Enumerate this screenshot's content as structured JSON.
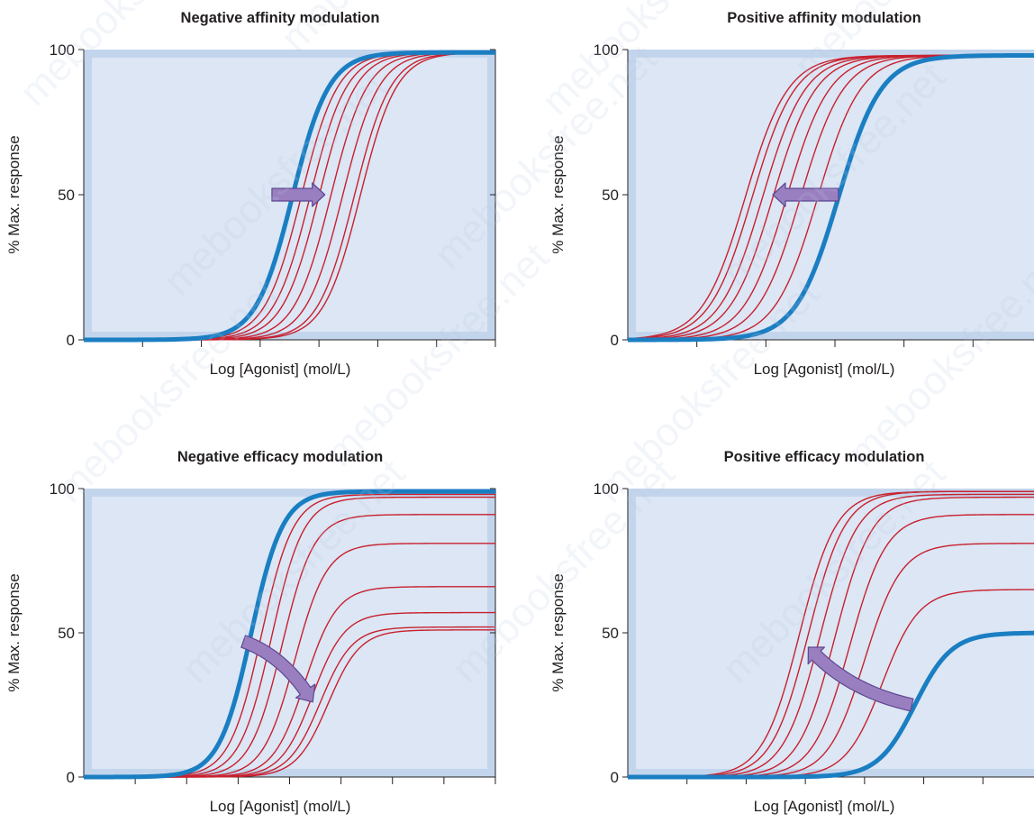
{
  "watermark": "mebooksfree.net",
  "colors": {
    "plot_bg": "#dce6f4",
    "plot_frame": "#c3d5ec",
    "control_curve": "#1a7ec2",
    "modulated_curves": "#c8202e",
    "arrow_fill": "#9a7fc0",
    "arrow_stroke": "#5d4690",
    "axis": "#231f20"
  },
  "chart_data": [
    {
      "type": "line",
      "title": "Negative affinity modulation",
      "xlabel": "Log [Agonist] (mol/L)",
      "ylabel": "% Max. response",
      "xscale": "log",
      "ylim": [
        0,
        100
      ],
      "yticks": [
        "0",
        "50",
        "100"
      ],
      "xticks": [
        "",
        "",
        "",
        "",
        "",
        "",
        ""
      ],
      "x_tick_labels_shown": false,
      "grid": false,
      "shift_arrow": "right",
      "series": [
        {
          "role": "control",
          "color": "#1a7ec2",
          "emax": 99,
          "ec50_x": 3.55
        },
        {
          "role": "modulated",
          "color": "#c8202e",
          "curves": [
            {
              "emax": 99,
              "ec50_x": 3.7
            },
            {
              "emax": 99,
              "ec50_x": 3.85
            },
            {
              "emax": 99,
              "ec50_x": 4.0
            },
            {
              "emax": 99,
              "ec50_x": 4.2
            },
            {
              "emax": 99,
              "ec50_x": 4.4
            },
            {
              "emax": 99,
              "ec50_x": 4.6
            },
            {
              "emax": 99,
              "ec50_x": 4.7
            }
          ]
        }
      ]
    },
    {
      "type": "line",
      "title": "Positive affinity modulation",
      "xlabel": "Log [Agonist] (mol/L)",
      "ylabel": "% Max. response",
      "xscale": "log",
      "ylim": [
        0,
        100
      ],
      "yticks": [
        "0",
        "50",
        "100"
      ],
      "xticks": [
        "",
        "",
        "",
        "",
        "",
        ""
      ],
      "x_tick_labels_shown": false,
      "grid": false,
      "shift_arrow": "left",
      "series": [
        {
          "role": "control",
          "color": "#1a7ec2",
          "emax": 98,
          "ec50_x": 3.05
        },
        {
          "role": "modulated",
          "color": "#c8202e",
          "curves": [
            {
              "emax": 98,
              "ec50_x": 2.75
            },
            {
              "emax": 98,
              "ec50_x": 2.5
            },
            {
              "emax": 98,
              "ec50_x": 2.3
            },
            {
              "emax": 98,
              "ec50_x": 2.1
            },
            {
              "emax": 98,
              "ec50_x": 1.95
            },
            {
              "emax": 98,
              "ec50_x": 1.8
            },
            {
              "emax": 98,
              "ec50_x": 1.7
            }
          ]
        }
      ]
    },
    {
      "type": "line",
      "title": "Negative efficacy modulation",
      "xlabel": "Log [Agonist] (mol/L)",
      "ylabel": "% Max. response",
      "xscale": "log",
      "ylim": [
        0,
        100
      ],
      "yticks": [
        "0",
        "50",
        "100"
      ],
      "xticks": [
        "",
        "",
        "",
        "",
        "",
        "",
        "",
        ""
      ],
      "x_tick_labels_shown": false,
      "grid": false,
      "shift_arrow": "down-right",
      "series": [
        {
          "role": "control",
          "color": "#1a7ec2",
          "emax": 99,
          "ec50_x": 3.25
        },
        {
          "role": "modulated",
          "color": "#c8202e",
          "curves": [
            {
              "emax": 98,
              "ec50_x": 3.45
            },
            {
              "emax": 97,
              "ec50_x": 3.65
            },
            {
              "emax": 91,
              "ec50_x": 3.85
            },
            {
              "emax": 81,
              "ec50_x": 4.1
            },
            {
              "emax": 66,
              "ec50_x": 4.3
            },
            {
              "emax": 57,
              "ec50_x": 4.45
            },
            {
              "emax": 52,
              "ec50_x": 4.6
            },
            {
              "emax": 51,
              "ec50_x": 4.75
            }
          ]
        }
      ]
    },
    {
      "type": "line",
      "title": "Positive efficacy modulation",
      "xlabel": "Log [Agonist] (mol/L)",
      "ylabel": "% Max. response",
      "xscale": "log",
      "ylim": [
        0,
        100
      ],
      "yticks": [
        "0",
        "50",
        "100"
      ],
      "xticks": [
        "",
        "",
        "",
        "",
        "",
        "",
        ""
      ],
      "x_tick_labels_shown": false,
      "grid": false,
      "shift_arrow": "up-left",
      "series": [
        {
          "role": "control",
          "color": "#1a7ec2",
          "emax": 50,
          "ec50_x": 4.85
        },
        {
          "role": "modulated",
          "color": "#c8202e",
          "curves": [
            {
              "emax": 65,
              "ec50_x": 4.3
            },
            {
              "emax": 81,
              "ec50_x": 4.0
            },
            {
              "emax": 91,
              "ec50_x": 3.75
            },
            {
              "emax": 97,
              "ec50_x": 3.5
            },
            {
              "emax": 98,
              "ec50_x": 3.25
            },
            {
              "emax": 99,
              "ec50_x": 3.05
            },
            {
              "emax": 99,
              "ec50_x": 2.9
            }
          ]
        }
      ]
    }
  ]
}
